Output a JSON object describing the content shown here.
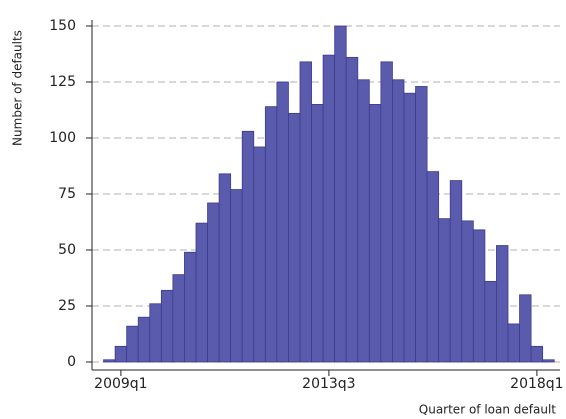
{
  "chart_data": {
    "type": "histogram",
    "xlabel": "Quarter of loan default",
    "ylabel": "Number of defaults",
    "bins": [
      2008.625,
      2008.875,
      2009.125,
      2009.375,
      2009.625,
      2009.875,
      2010.125,
      2010.375,
      2010.625,
      2010.875,
      2011.125,
      2011.375,
      2011.625,
      2011.875,
      2012.125,
      2012.375,
      2012.625,
      2012.875,
      2013.125,
      2013.375,
      2013.625,
      2013.875,
      2014.125,
      2014.375,
      2014.625,
      2014.875,
      2015.125,
      2015.375,
      2015.625,
      2015.875,
      2016.125,
      2016.375,
      2016.625,
      2016.875,
      2017.125,
      2017.375,
      2017.625,
      2017.875,
      2018.125,
      2018.375
    ],
    "values": [
      1,
      7,
      16,
      20,
      26,
      32,
      39,
      49,
      62,
      71,
      84,
      77,
      103,
      96,
      114,
      125,
      111,
      134,
      115,
      137,
      150,
      136,
      126,
      115,
      134,
      126,
      120,
      123,
      85,
      64,
      81,
      63,
      59,
      36,
      52,
      17,
      30,
      7,
      1
    ],
    "color": "#5b5bad",
    "xlim": [
      2008.375,
      2018.5
    ],
    "xticks": [
      {
        "value": 2009,
        "label": "2009q1"
      },
      {
        "value": 2013.5,
        "label": "2013q3"
      },
      {
        "value": 2018,
        "label": "2018q1"
      }
    ],
    "ylim": [
      0,
      150
    ],
    "yticks": [
      0,
      25,
      50,
      75,
      100,
      125,
      150
    ],
    "grid": true
  }
}
